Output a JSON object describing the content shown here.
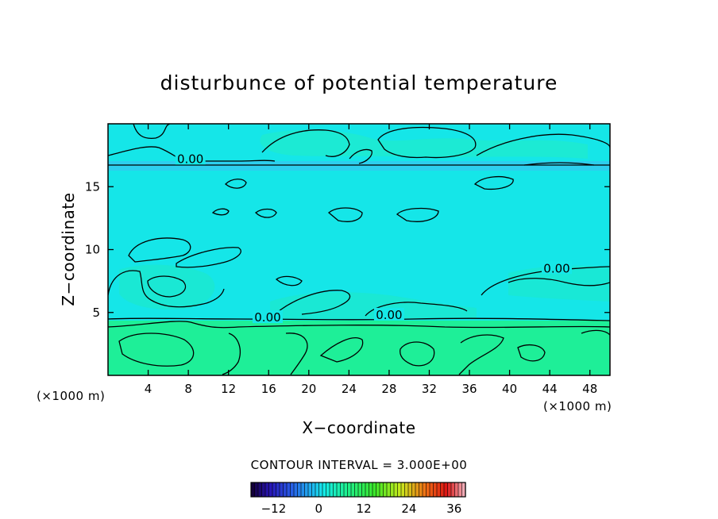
{
  "chart_data": {
    "type": "heatmap",
    "title": "disturbunce of potential temperature",
    "xlabel": "X−coordinate",
    "ylabel": "Z−coordinate",
    "x_unit": "(×1000 m)",
    "y_unit": "(×1000 m)",
    "xlim": [
      0,
      50
    ],
    "ylim": [
      0,
      20
    ],
    "x_ticks": [
      4,
      8,
      12,
      16,
      20,
      24,
      28,
      32,
      36,
      40,
      44,
      48
    ],
    "y_ticks": [
      5,
      10,
      15
    ],
    "contour_labels": [
      {
        "text": "0.00",
        "x": 8.2,
        "z": 17.2
      },
      {
        "text": "0.00",
        "x": 15.9,
        "z": 4.6
      },
      {
        "text": "0.00",
        "x": 28.0,
        "z": 4.8
      },
      {
        "text": "0.00",
        "x": 44.7,
        "z": 8.5
      }
    ],
    "contour_interval": "CONTOUR INTERVAL = 3.000E+00",
    "colorbar": {
      "ticks": [
        -12,
        0,
        12,
        24,
        36
      ],
      "min": -18,
      "max": 39
    },
    "field_summary": {
      "upper_layer_value": 0,
      "lower_layer_value": 3,
      "layer_boundary_z": 4.5,
      "stable_layer_z": 16.6
    },
    "grid": false
  },
  "colors": {
    "upper_field": "#16e8e8",
    "lower_field": "#1ef09a",
    "stable_layer": "#3ac4f0",
    "contour": "#000000"
  }
}
